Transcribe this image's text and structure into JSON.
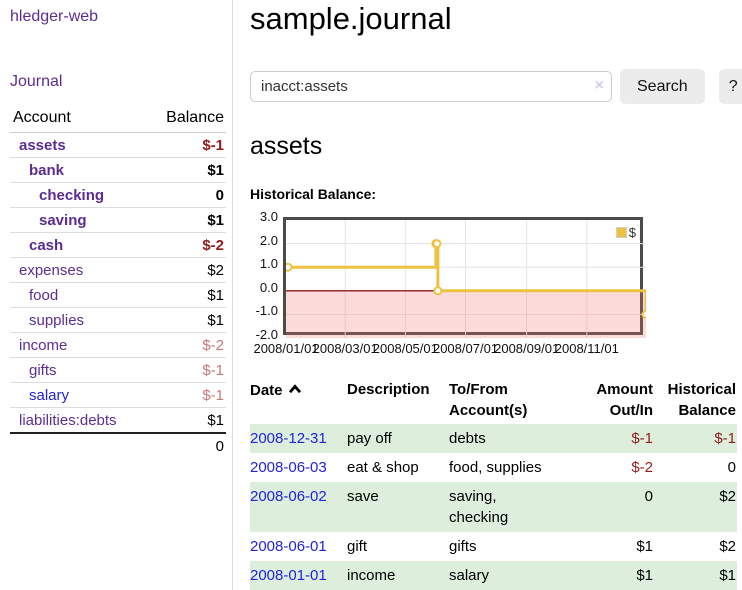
{
  "colors": {
    "link_purple": "#5c2d91",
    "link_blue": "#2323d9",
    "negative_strong": "#8f1d1d",
    "negative_soft": "#c47979",
    "row_highlight_green": "#ddeedd",
    "chart_line": "#edc240",
    "chart_negative_fill": "#fbdddd",
    "chart_zero_line": "#8b1a1a"
  },
  "app": {
    "brand": "hledger-web",
    "nav_journal": "Journal"
  },
  "sidebar": {
    "accounts": {
      "header_account": "Account",
      "header_balance": "Balance",
      "rows": [
        {
          "name": "assets",
          "balance": "$-1"
        },
        {
          "name": "bank",
          "balance": "$1"
        },
        {
          "name": "checking",
          "balance": "0"
        },
        {
          "name": "saving",
          "balance": "$1"
        },
        {
          "name": "cash",
          "balance": "$-2"
        },
        {
          "name": "expenses",
          "balance": "$2"
        },
        {
          "name": "food",
          "balance": "$1"
        },
        {
          "name": "supplies",
          "balance": "$1"
        },
        {
          "name": "income",
          "balance": "$-2"
        },
        {
          "name": "gifts",
          "balance": "$-1"
        },
        {
          "name": "salary",
          "balance": "$-1"
        },
        {
          "name": "liabilities:debts",
          "balance": "$1"
        }
      ],
      "total": "0"
    }
  },
  "main": {
    "title": "sample.journal",
    "search": {
      "value": "inacct:assets",
      "clear_icon": "×",
      "search_button": "Search",
      "help_button": "?"
    },
    "account_heading": "assets",
    "chart_title": "Historical Balance:"
  },
  "chart_data": {
    "type": "line",
    "step": true,
    "title": "Historical Balance:",
    "x_start": "2008-01-01",
    "x_end": "2008-12-31",
    "ylim": [
      -2.0,
      3.0
    ],
    "yticks": [
      "3.0",
      "2.0",
      "1.0",
      "0.0",
      "-1.0",
      "-2.0"
    ],
    "xticks": [
      "2008/01/01",
      "2008/03/01",
      "2008/05/01",
      "2008/07/01",
      "2008/09/01",
      "2008/11/01"
    ],
    "grid": true,
    "legend_position": "top-right",
    "negative_region_highlighted": true,
    "series": [
      {
        "name": "$",
        "points": [
          [
            "2008-01-01",
            1
          ],
          [
            "2008-06-01",
            2
          ],
          [
            "2008-06-02",
            2
          ],
          [
            "2008-06-03",
            0
          ],
          [
            "2008-12-31",
            -1
          ]
        ]
      }
    ]
  },
  "register": {
    "headers": {
      "date": "Date",
      "description": "Description",
      "tofrom": "To/From Account(s)",
      "amount": "Amount Out/In",
      "balance": "Historical Balance"
    },
    "rows": [
      {
        "date": "2008-12-31",
        "description": "pay off",
        "accounts": "debts",
        "amount": "$-1",
        "balance": "$-1"
      },
      {
        "date": "2008-06-03",
        "description": "eat & shop",
        "accounts": "food, supplies",
        "amount": "$-2",
        "balance": "0"
      },
      {
        "date": "2008-06-02",
        "description": "save",
        "accounts": "saving, checking",
        "amount": "0",
        "balance": "$2"
      },
      {
        "date": "2008-06-01",
        "description": "gift",
        "accounts": "gifts",
        "amount": "$1",
        "balance": "$2"
      },
      {
        "date": "2008-01-01",
        "description": "income",
        "accounts": "salary",
        "amount": "$1",
        "balance": "$1"
      }
    ]
  }
}
